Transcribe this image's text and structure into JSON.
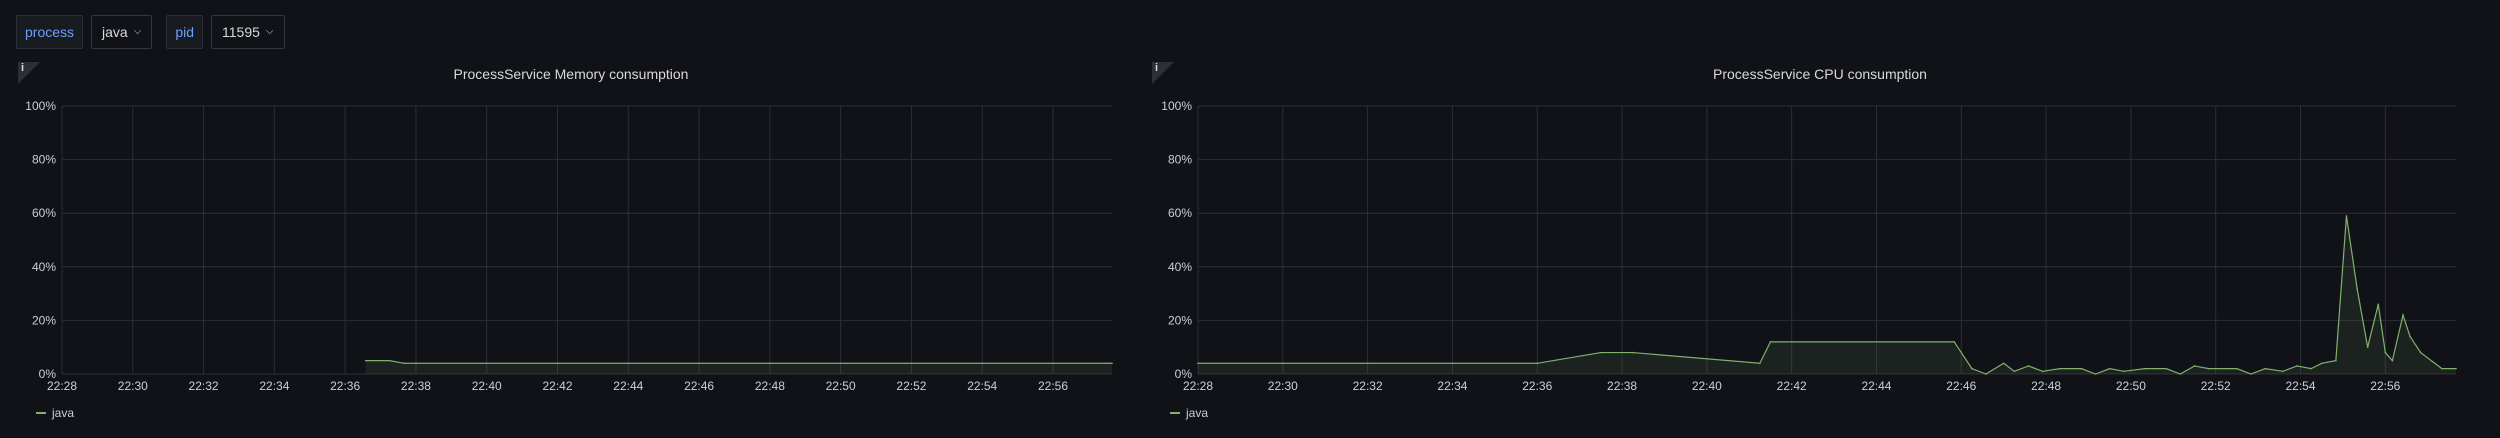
{
  "variables": [
    {
      "label": "process",
      "value": "java"
    },
    {
      "label": "pid",
      "value": "11595"
    }
  ],
  "colors": {
    "series": "#7eb26d",
    "grid": "#2c2f36",
    "axis_text": "#c7d0d9",
    "variable_label": "#6e9fff"
  },
  "panels": [
    {
      "title": "ProcessService Memory consumption",
      "info_icon": "info-icon",
      "legend": "java",
      "chart_data": {
        "type": "area",
        "title": "ProcessService Memory consumption",
        "x_ticks": [
          "22:28",
          "22:30",
          "22:32",
          "22:34",
          "22:36",
          "22:38",
          "22:40",
          "22:42",
          "22:44",
          "22:46",
          "22:48",
          "22:50",
          "22:52",
          "22:54",
          "22:56"
        ],
        "y_ticks": [
          "0%",
          "20%",
          "40%",
          "60%",
          "80%",
          "100%"
        ],
        "xlim": [
          "22:28",
          "22:57:40"
        ],
        "ylim": [
          0,
          100
        ],
        "grid": true,
        "legend_position": "bottom-left",
        "series": [
          {
            "name": "java",
            "x": [
              "22:36:35",
              "22:37:15",
              "22:37:40",
              "22:38:00",
              "22:57:40"
            ],
            "y": [
              5,
              5,
              4,
              4,
              4
            ]
          }
        ]
      }
    },
    {
      "title": "ProcessService CPU consumption",
      "info_icon": "info-icon",
      "legend": "java",
      "chart_data": {
        "type": "area",
        "title": "ProcessService CPU consumption",
        "x_ticks": [
          "22:28",
          "22:30",
          "22:32",
          "22:34",
          "22:36",
          "22:38",
          "22:40",
          "22:42",
          "22:44",
          "22:46",
          "22:48",
          "22:50",
          "22:52",
          "22:54",
          "22:56"
        ],
        "y_ticks": [
          "0%",
          "20%",
          "40%",
          "60%",
          "80%",
          "100%"
        ],
        "xlim": [
          "22:28",
          "22:57:40"
        ],
        "ylim": [
          0,
          100
        ],
        "grid": true,
        "legend_position": "bottom-left",
        "series": [
          {
            "name": "java",
            "x": [
              "22:28:00",
              "22:36:00",
              "22:37:30",
              "22:38:15",
              "22:41:15",
              "22:41:30",
              "22:45:50",
              "22:46:15",
              "22:46:35",
              "22:47:00",
              "22:47:15",
              "22:47:35",
              "22:47:55",
              "22:48:20",
              "22:48:50",
              "22:49:10",
              "22:49:30",
              "22:49:50",
              "22:50:20",
              "22:50:50",
              "22:51:10",
              "22:51:30",
              "22:51:50",
              "22:52:30",
              "22:52:50",
              "22:53:10",
              "22:53:35",
              "22:53:55",
              "22:54:15",
              "22:54:30",
              "22:54:50",
              "22:55:05",
              "22:55:20",
              "22:55:35",
              "22:55:50",
              "22:56:00",
              "22:56:10",
              "22:56:25",
              "22:56:35",
              "22:56:50",
              "22:57:20",
              "22:57:40"
            ],
            "y": [
              4,
              4,
              8,
              8,
              4,
              12,
              12,
              2,
              0,
              4,
              1,
              3,
              1,
              2,
              2,
              0,
              2,
              1,
              2,
              2,
              0,
              3,
              2,
              2,
              0,
              2,
              1,
              3,
              2,
              4,
              5,
              59,
              32,
              10,
              26,
              8,
              5,
              22,
              14,
              8,
              2,
              2
            ]
          }
        ]
      }
    }
  ]
}
